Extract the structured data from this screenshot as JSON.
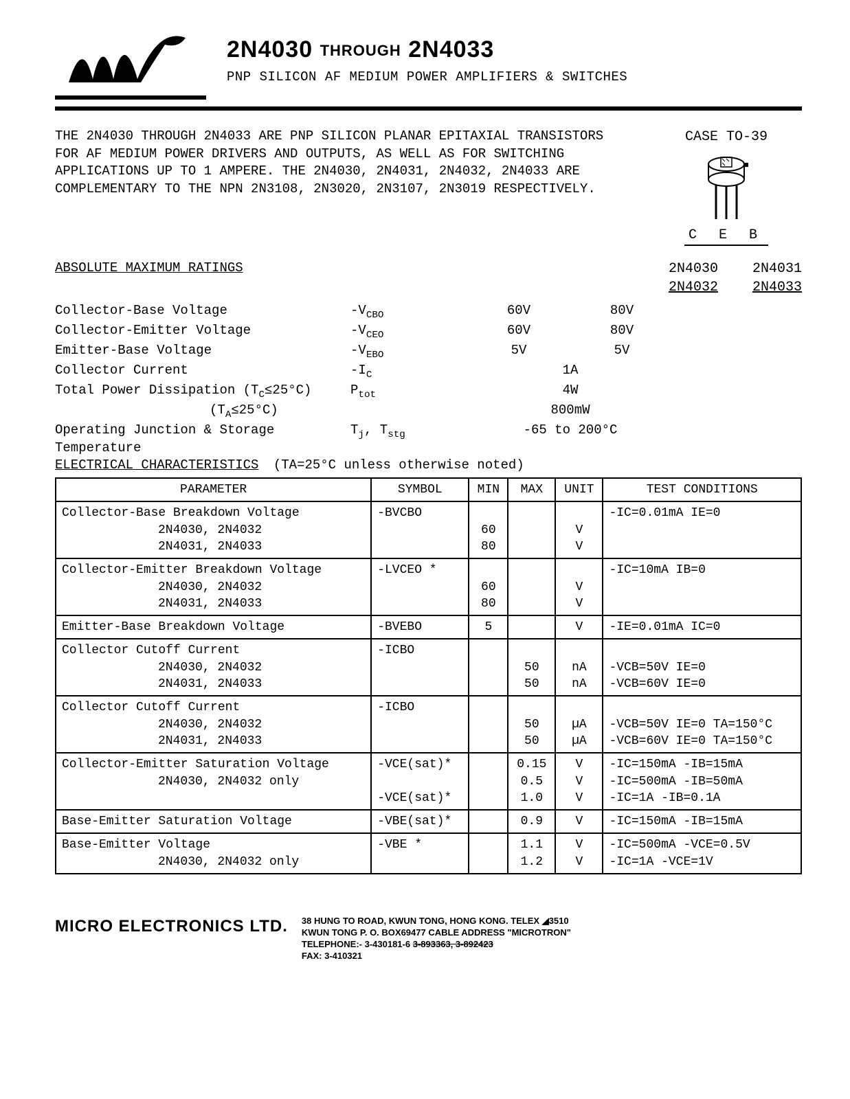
{
  "header": {
    "title_left": "2N4030",
    "title_mid": "THROUGH",
    "title_right": "2N4033",
    "subtitle": "PNP SILICON AF MEDIUM POWER AMPLIFIERS & SWITCHES"
  },
  "intro": "THE 2N4030 THROUGH 2N4033 ARE PNP SILICON PLANAR EPITAXIAL TRANSISTORS FOR AF MEDIUM POWER DRIVERS AND OUTPUTS, AS WELL AS FOR SWITCHING APPLICATIONS UP TO 1 AMPERE.  THE 2N4030, 2N4031, 2N4032, 2N4033 ARE COMPLEMENTARY TO THE NPN 2N3108, 2N3020, 2N3107, 2N3019 RESPECTIVELY.",
  "case": {
    "title": "CASE TO-39",
    "pins": "C E B"
  },
  "ratings": {
    "title": "ABSOLUTE MAXIMUM RATINGS",
    "col1_a": "2N4030",
    "col1_b": "2N4032",
    "col2_a": "2N4031",
    "col2_b": "2N4033",
    "rows": [
      {
        "label": "Collector-Base Voltage",
        "sym": "-V",
        "sub": "CBO",
        "v1": "60V",
        "v2": "80V"
      },
      {
        "label": "Collector-Emitter Voltage",
        "sym": "-V",
        "sub": "CEO",
        "v1": "60V",
        "v2": "80V"
      },
      {
        "label": "Emitter-Base Voltage",
        "sym": "-V",
        "sub": "EBO",
        "v1": "5V",
        "v2": "5V"
      }
    ],
    "ic": {
      "label": "Collector Current",
      "sym": "-I",
      "sub": "C",
      "val": "1A"
    },
    "ptot1": {
      "label": "Total Power Dissipation (T",
      "sublabel": "C",
      "cond": "≤25°C)",
      "sym": "P",
      "sub": "tot",
      "val": "4W"
    },
    "ptot2": {
      "label": "(T",
      "sublabel": "A",
      "cond": "≤25°C)",
      "val": "800mW"
    },
    "tj": {
      "label": "Operating Junction & Storage Temperature",
      "sym": "T",
      "sub": "j",
      "sym2": ", T",
      "sub2": "stg",
      "val": "-65 to 200°C"
    }
  },
  "elec": {
    "title": "ELECTRICAL CHARACTERISTICS",
    "cond": "(TA=25°C  unless otherwise noted)",
    "headers": [
      "PARAMETER",
      "SYMBOL",
      "MIN",
      "MAX",
      "UNIT",
      "TEST CONDITIONS"
    ],
    "rows": [
      {
        "param": "Collector-Base Breakdown Voltage",
        "sub": [
          "2N4030, 2N4032",
          "2N4031, 2N4033"
        ],
        "sym": "-BVCBO",
        "min": [
          "",
          "60",
          "80"
        ],
        "max": [
          "",
          "",
          ""
        ],
        "unit": [
          "",
          "V",
          "V"
        ],
        "tc": [
          "-IC=0.01mA IE=0",
          "",
          ""
        ]
      },
      {
        "param": "Collector-Emitter Breakdown Voltage",
        "sub": [
          "2N4030, 2N4032",
          "2N4031, 2N4033"
        ],
        "sym": "-LVCEO *",
        "min": [
          "",
          "60",
          "80"
        ],
        "max": [
          "",
          "",
          ""
        ],
        "unit": [
          "",
          "V",
          "V"
        ],
        "tc": [
          "-IC=10mA  IB=0",
          "",
          ""
        ]
      },
      {
        "param": "Emitter-Base Breakdown Voltage",
        "sub": [],
        "sym": "-BVEBO",
        "min": [
          "5"
        ],
        "max": [
          ""
        ],
        "unit": [
          "V"
        ],
        "tc": [
          "-IE=0.01mA IC=0"
        ]
      },
      {
        "param": "Collector Cutoff Current",
        "sub": [
          "2N4030, 2N4032",
          "2N4031, 2N4033"
        ],
        "sym": "-ICBO",
        "min": [
          "",
          "",
          ""
        ],
        "max": [
          "",
          "50",
          "50"
        ],
        "unit": [
          "",
          "nA",
          "nA"
        ],
        "tc": [
          "",
          "-VCB=50V  IE=0",
          "-VCB=60V  IE=0"
        ]
      },
      {
        "param": "Collector Cutoff Current",
        "sub": [
          "2N4030, 2N4032",
          "2N4031, 2N4033"
        ],
        "sym": "-ICBO",
        "min": [
          "",
          "",
          ""
        ],
        "max": [
          "",
          "50",
          "50"
        ],
        "unit": [
          "",
          "µA",
          "µA"
        ],
        "tc": [
          "",
          "-VCB=50V IE=0 TA=150°C",
          "-VCB=60V IE=0 TA=150°C"
        ]
      },
      {
        "param": "Collector-Emitter Saturation Voltage",
        "sub": [
          "",
          "2N4030, 2N4032 only"
        ],
        "sym": "-VCE(sat)*",
        "sym2": "-VCE(sat)*",
        "min": [
          "",
          "",
          ""
        ],
        "max": [
          "0.15",
          "0.5",
          "1.0"
        ],
        "unit": [
          "V",
          "V",
          "V"
        ],
        "tc": [
          "-IC=150mA  -IB=15mA",
          "-IC=500mA  -IB=50mA",
          "-IC=1A    -IB=0.1A"
        ]
      },
      {
        "param": "Base-Emitter Saturation Voltage",
        "sub": [],
        "sym": "-VBE(sat)*",
        "min": [
          ""
        ],
        "max": [
          "0.9"
        ],
        "unit": [
          "V"
        ],
        "tc": [
          "-IC=150mA -IB=15mA"
        ]
      },
      {
        "param": "Base-Emitter Voltage",
        "sub": [
          "2N4030, 2N4032 only"
        ],
        "sym": "-VBE *",
        "min": [
          "",
          ""
        ],
        "max": [
          "1.1",
          "1.2"
        ],
        "unit": [
          "V",
          "V"
        ],
        "tc": [
          "-IC=500mA -VCE=0.5V",
          "-IC=1A   -VCE=1V"
        ]
      }
    ]
  },
  "footer": {
    "company": "MICRO ELECTRONICS LTD.",
    "line1": "38 HUNG TO ROAD, KWUN TONG, HONG KONG.    TELEX ◢3510",
    "line2": "KWUN TONG P. O. BOX69477 CABLE ADDRESS \"MICROTRON\"",
    "line3a": "TELEPHONE:-  3-430181-6  ",
    "line3b": "3-893363,  3-892423",
    "line4": "FAX: 3-410321"
  },
  "colors": {
    "text": "#000000",
    "bg": "#ffffff",
    "border": "#000000"
  }
}
